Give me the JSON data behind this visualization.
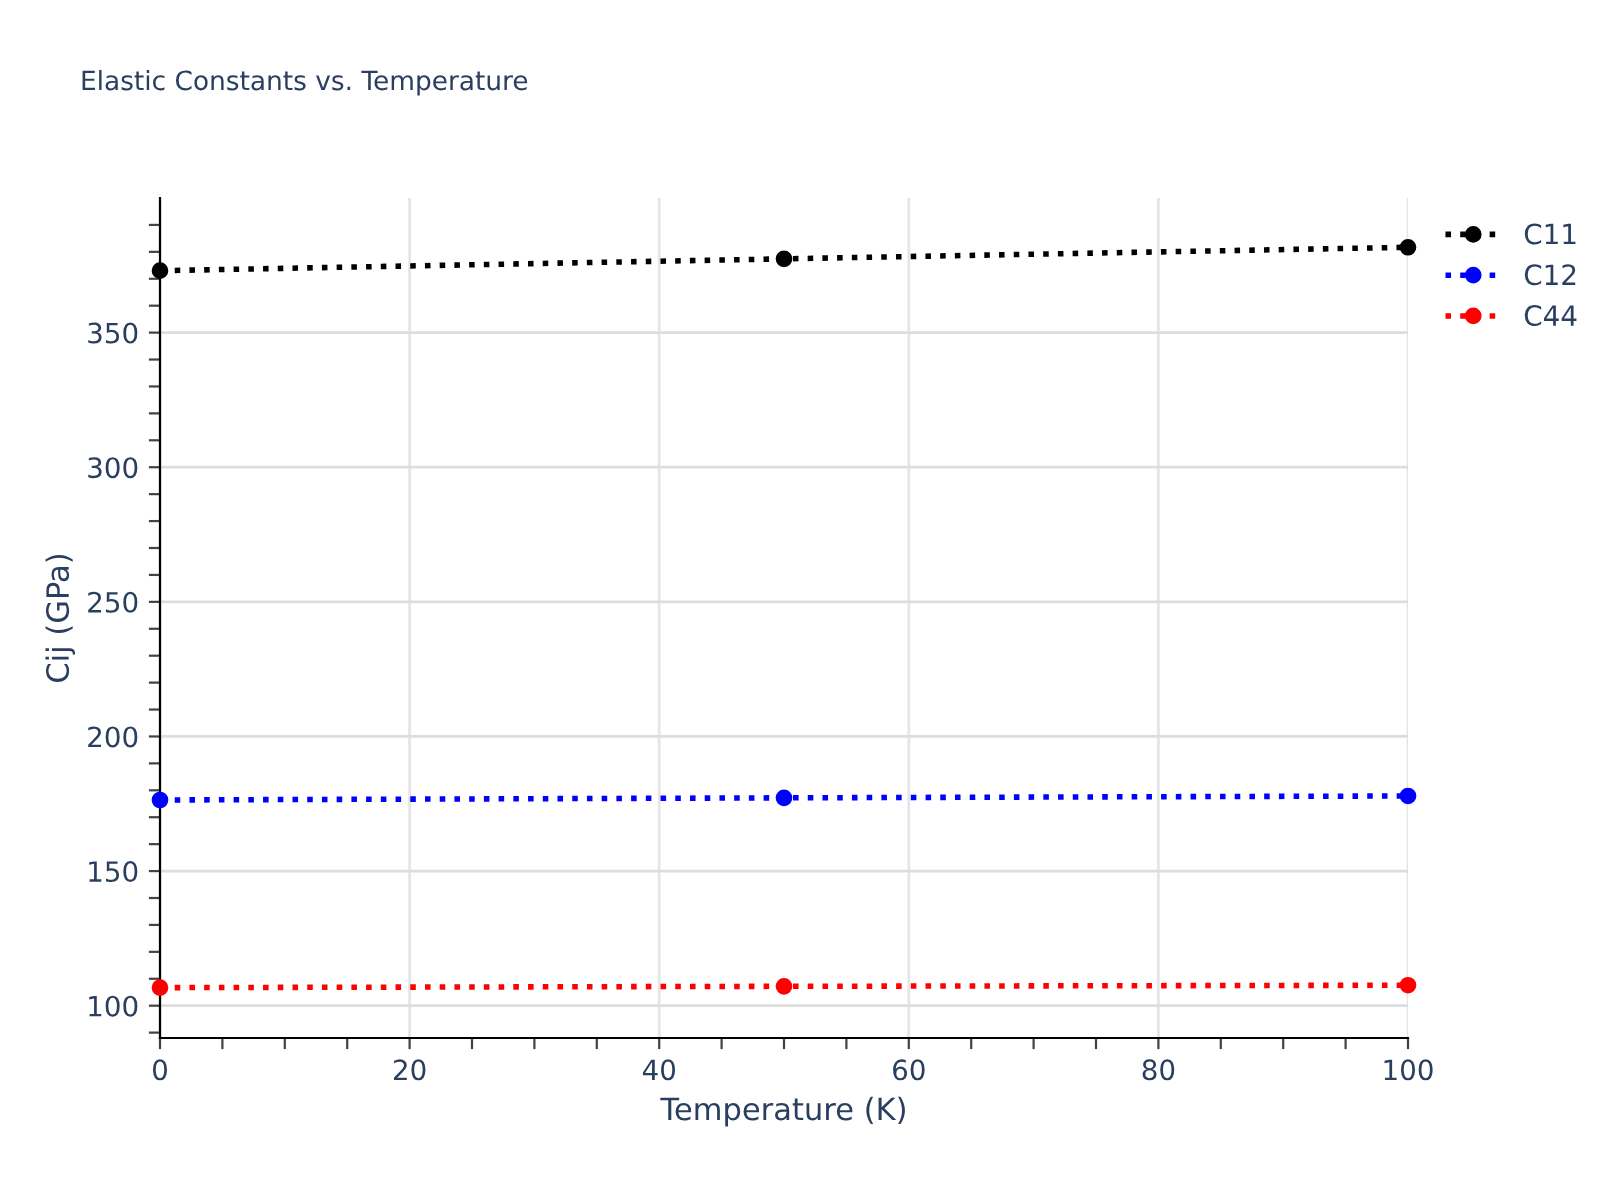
{
  "chart_data": {
    "type": "line",
    "title": "Elastic Constants vs. Temperature",
    "xlabel": "Temperature (K)",
    "ylabel": "Cij (GPa)",
    "x": [
      0,
      50,
      100
    ],
    "series": [
      {
        "name": "C11",
        "color": "#000000",
        "values": [
          373.0,
          377.4,
          381.7
        ]
      },
      {
        "name": "C12",
        "color": "#0000ff",
        "values": [
          176.4,
          177.2,
          177.9
        ]
      },
      {
        "name": "C44",
        "color": "#ff0000",
        "values": [
          106.7,
          107.2,
          107.6
        ]
      }
    ],
    "xlim": [
      0,
      100
    ],
    "xticks": [
      0,
      {
        "value": 5,
        "label": null
      },
      {
        "value": 10,
        "label": null
      },
      {
        "value": 15,
        "label": null
      },
      20,
      {
        "value": 25,
        "label": null
      },
      {
        "value": 30,
        "label": null
      },
      {
        "value": 35,
        "label": null
      },
      40,
      {
        "value": 45,
        "label": null
      },
      {
        "value": 50,
        "label": null
      },
      {
        "value": 55,
        "label": null
      },
      60,
      {
        "value": 65,
        "label": null
      },
      {
        "value": 70,
        "label": null
      },
      {
        "value": 75,
        "label": null
      },
      80,
      {
        "value": 85,
        "label": null
      },
      {
        "value": 90,
        "label": null
      },
      {
        "value": 95,
        "label": null
      },
      100
    ],
    "ylim": [
      88,
      400
    ],
    "yticks": [
      {
        "value": 90,
        "label": null
      },
      100,
      {
        "value": 110,
        "label": null
      },
      {
        "value": 120,
        "label": null
      },
      {
        "value": 130,
        "label": null
      },
      {
        "value": 140,
        "label": null
      },
      150,
      {
        "value": 160,
        "label": null
      },
      {
        "value": 170,
        "label": null
      },
      {
        "value": 180,
        "label": null
      },
      {
        "value": 190,
        "label": null
      },
      200,
      {
        "value": 210,
        "label": null
      },
      {
        "value": 220,
        "label": null
      },
      {
        "value": 230,
        "label": null
      },
      {
        "value": 240,
        "label": null
      },
      250,
      {
        "value": 260,
        "label": null
      },
      {
        "value": 270,
        "label": null
      },
      {
        "value": 280,
        "label": null
      },
      {
        "value": 290,
        "label": null
      },
      300,
      {
        "value": 310,
        "label": null
      },
      {
        "value": 320,
        "label": null
      },
      {
        "value": 330,
        "label": null
      },
      {
        "value": 340,
        "label": null
      },
      350,
      {
        "value": 360,
        "label": null
      },
      {
        "value": 370,
        "label": null
      },
      {
        "value": 380,
        "label": null
      },
      {
        "value": 390,
        "label": null
      }
    ],
    "grid": true,
    "legend": "top right",
    "marker": "circle",
    "line_style": "dotted"
  }
}
